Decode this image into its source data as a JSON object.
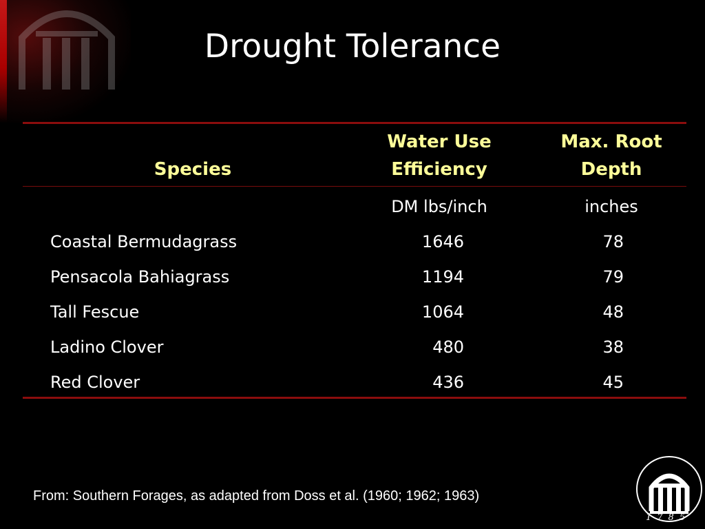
{
  "slide": {
    "title": "Drought Tolerance",
    "source_note": "From: Southern Forages, as adapted from Doss et al. (1960; 1962; 1963)",
    "logo_year": "1785",
    "logo_icon": "arch-logo-icon",
    "accent_color": "#8b0d0d",
    "header_color": "#ffff99"
  },
  "table": {
    "headers": {
      "species": "Species",
      "wue_line1": "Water Use",
      "wue_line2": "Efficiency",
      "root_line1": "Max. Root",
      "root_line2": "Depth"
    },
    "units": {
      "wue": "DM lbs/inch",
      "root": "inches"
    },
    "rows": [
      {
        "species": "Coastal Bermudagrass",
        "wue": "1646",
        "root": "78"
      },
      {
        "species": "Pensacola Bahiagrass",
        "wue": "1194",
        "root": "79"
      },
      {
        "species": "Tall Fescue",
        "wue": "1064",
        "root": "48"
      },
      {
        "species": "Ladino Clover",
        "wue": "480",
        "root": "38"
      },
      {
        "species": "Red Clover",
        "wue": "436",
        "root": "45"
      }
    ]
  }
}
